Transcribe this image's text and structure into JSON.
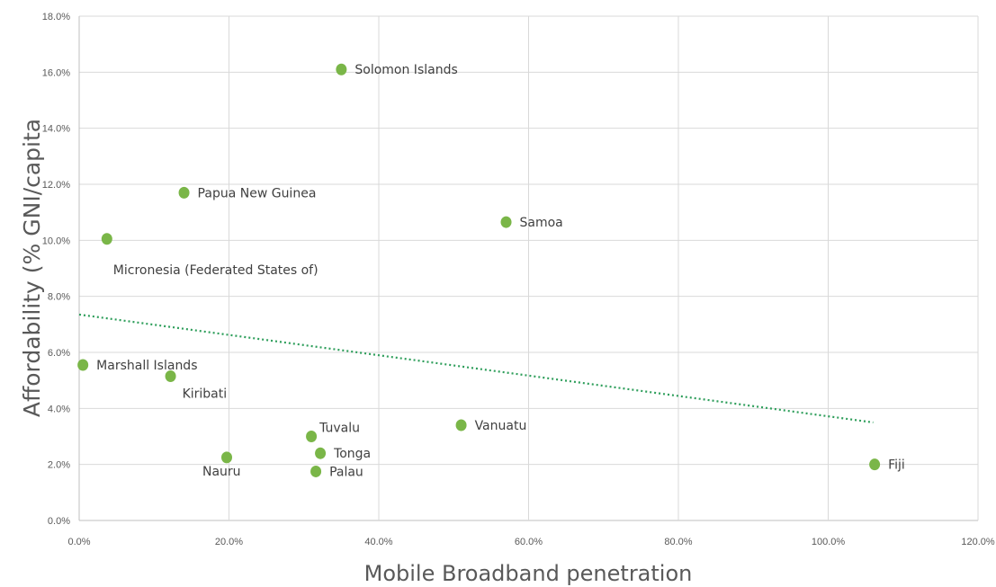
{
  "chart_data": {
    "type": "scatter",
    "xlabel": "Mobile Broadband penetration",
    "ylabel": "Affordability (% GNI/capita",
    "xlim": [
      0,
      120
    ],
    "ylim": [
      0,
      18
    ],
    "x_ticks": [
      {
        "value": 0,
        "label": "0.0%"
      },
      {
        "value": 20,
        "label": "20.0%"
      },
      {
        "value": 40,
        "label": "40.0%"
      },
      {
        "value": 60,
        "label": "60.0%"
      },
      {
        "value": 80,
        "label": "80.0%"
      },
      {
        "value": 100,
        "label": "100.0%"
      },
      {
        "value": 120,
        "label": "120.0%"
      }
    ],
    "y_ticks": [
      {
        "value": 0,
        "label": "0.0%"
      },
      {
        "value": 2,
        "label": "2.0%"
      },
      {
        "value": 4,
        "label": "4.0%"
      },
      {
        "value": 6,
        "label": "6.0%"
      },
      {
        "value": 8,
        "label": "8.0%"
      },
      {
        "value": 10,
        "label": "10.0%"
      },
      {
        "value": 12,
        "label": "12.0%"
      },
      {
        "value": 14,
        "label": "14.0%"
      },
      {
        "value": 16,
        "label": "16.0%"
      },
      {
        "value": 18,
        "label": "18.0%"
      }
    ],
    "grid": true,
    "point_color": "#7ab648",
    "trendline": {
      "style": "dotted linear",
      "color": "#2e9e5b",
      "x": [
        0,
        106
      ],
      "y": [
        7.35,
        3.5
      ]
    },
    "points": [
      {
        "name": "Solomon Islands",
        "x": 35.0,
        "y": 16.1,
        "label_pos": "right"
      },
      {
        "name": "Papua New Guinea",
        "x": 14.0,
        "y": 11.7,
        "label_pos": "right"
      },
      {
        "name": "Samoa",
        "x": 57.0,
        "y": 10.65,
        "label_pos": "right"
      },
      {
        "name": "Micronesia (Federated States of)",
        "x": 3.7,
        "y": 10.05,
        "label_pos": "below-right"
      },
      {
        "name": "Marshall Islands",
        "x": 0.5,
        "y": 5.55,
        "label_pos": "right"
      },
      {
        "name": "Kiribati",
        "x": 12.2,
        "y": 5.15,
        "label_pos": "below-right"
      },
      {
        "name": "Vanuatu",
        "x": 51.0,
        "y": 3.4,
        "label_pos": "right"
      },
      {
        "name": "Tuvalu",
        "x": 31.0,
        "y": 3.0,
        "label_pos": "above-right"
      },
      {
        "name": "Tonga",
        "x": 32.2,
        "y": 2.4,
        "label_pos": "right"
      },
      {
        "name": "Nauru",
        "x": 19.7,
        "y": 2.25,
        "label_pos": "below"
      },
      {
        "name": "Palau",
        "x": 31.6,
        "y": 1.75,
        "label_pos": "right"
      },
      {
        "name": "Fiji",
        "x": 106.2,
        "y": 2.0,
        "label_pos": "right"
      }
    ]
  }
}
